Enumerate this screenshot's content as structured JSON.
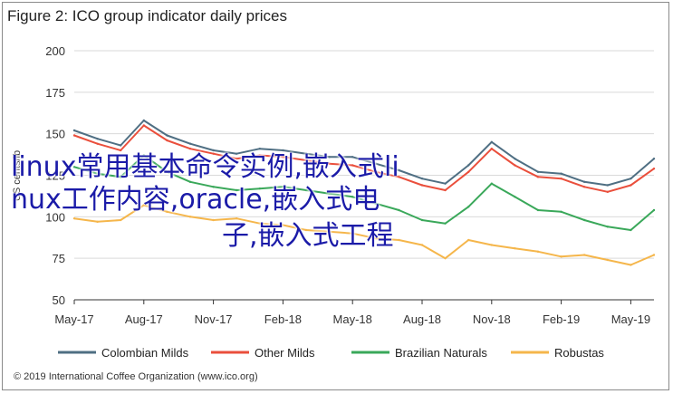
{
  "figure": {
    "title": "Figure 2: ICO group indicator daily prices",
    "credit": "© 2019 International Coffee Organization (www.ico.org)"
  },
  "overlay_text": {
    "line1": "linux常用基本命令实例,嵌入式li",
    "line2": "nux工作内容,oracle,嵌入式电",
    "line3": "子,嵌入式工程",
    "color": "#1b1ba8"
  },
  "chart_data": {
    "type": "line",
    "title": "Figure 2: ICO group indicator daily prices",
    "xlabel": "",
    "ylabel": "US cents/lb",
    "ylim": [
      50,
      200
    ],
    "yticks": [
      50,
      75,
      100,
      125,
      150,
      175,
      200
    ],
    "xticks": [
      "May-17",
      "Aug-17",
      "Nov-17",
      "Feb-18",
      "May-18",
      "Aug-18",
      "Nov-18",
      "Feb-19",
      "May-19"
    ],
    "grid": true,
    "legend_position": "bottom",
    "x": [
      "May-17",
      "Jun-17",
      "Jul-17",
      "Aug-17",
      "Sep-17",
      "Oct-17",
      "Nov-17",
      "Dec-17",
      "Jan-18",
      "Feb-18",
      "Mar-18",
      "Apr-18",
      "May-18",
      "Jun-18",
      "Jul-18",
      "Aug-18",
      "Sep-18",
      "Oct-18",
      "Nov-18",
      "Dec-18",
      "Jan-19",
      "Feb-19",
      "Mar-19",
      "Apr-19",
      "May-19",
      "Jun-19"
    ],
    "series": [
      {
        "name": "Colombian Milds",
        "color": "#4f6f83",
        "values": [
          152,
          147,
          143,
          158,
          149,
          144,
          140,
          138,
          141,
          140,
          138,
          136,
          136,
          132,
          128,
          123,
          120,
          131,
          145,
          135,
          127,
          126,
          121,
          119,
          123,
          135
        ]
      },
      {
        "name": "Other Milds",
        "color": "#ea4f3c",
        "values": [
          149,
          144,
          140,
          155,
          146,
          141,
          138,
          135,
          137,
          136,
          134,
          132,
          131,
          127,
          124,
          119,
          116,
          127,
          141,
          131,
          124,
          123,
          118,
          115,
          119,
          129
        ]
      },
      {
        "name": "Brazilian Naturals",
        "color": "#3aa85a",
        "values": [
          130,
          126,
          124,
          137,
          127,
          121,
          118,
          116,
          117,
          118,
          116,
          114,
          112,
          108,
          104,
          98,
          96,
          106,
          120,
          112,
          104,
          103,
          98,
          94,
          92,
          104
        ]
      },
      {
        "name": "Robustas",
        "color": "#f5b64b",
        "values": [
          99,
          97,
          98,
          107,
          103,
          100,
          98,
          99,
          96,
          95,
          92,
          91,
          90,
          87,
          86,
          83,
          75,
          86,
          83,
          81,
          79,
          76,
          77,
          74,
          71,
          77
        ]
      }
    ]
  }
}
